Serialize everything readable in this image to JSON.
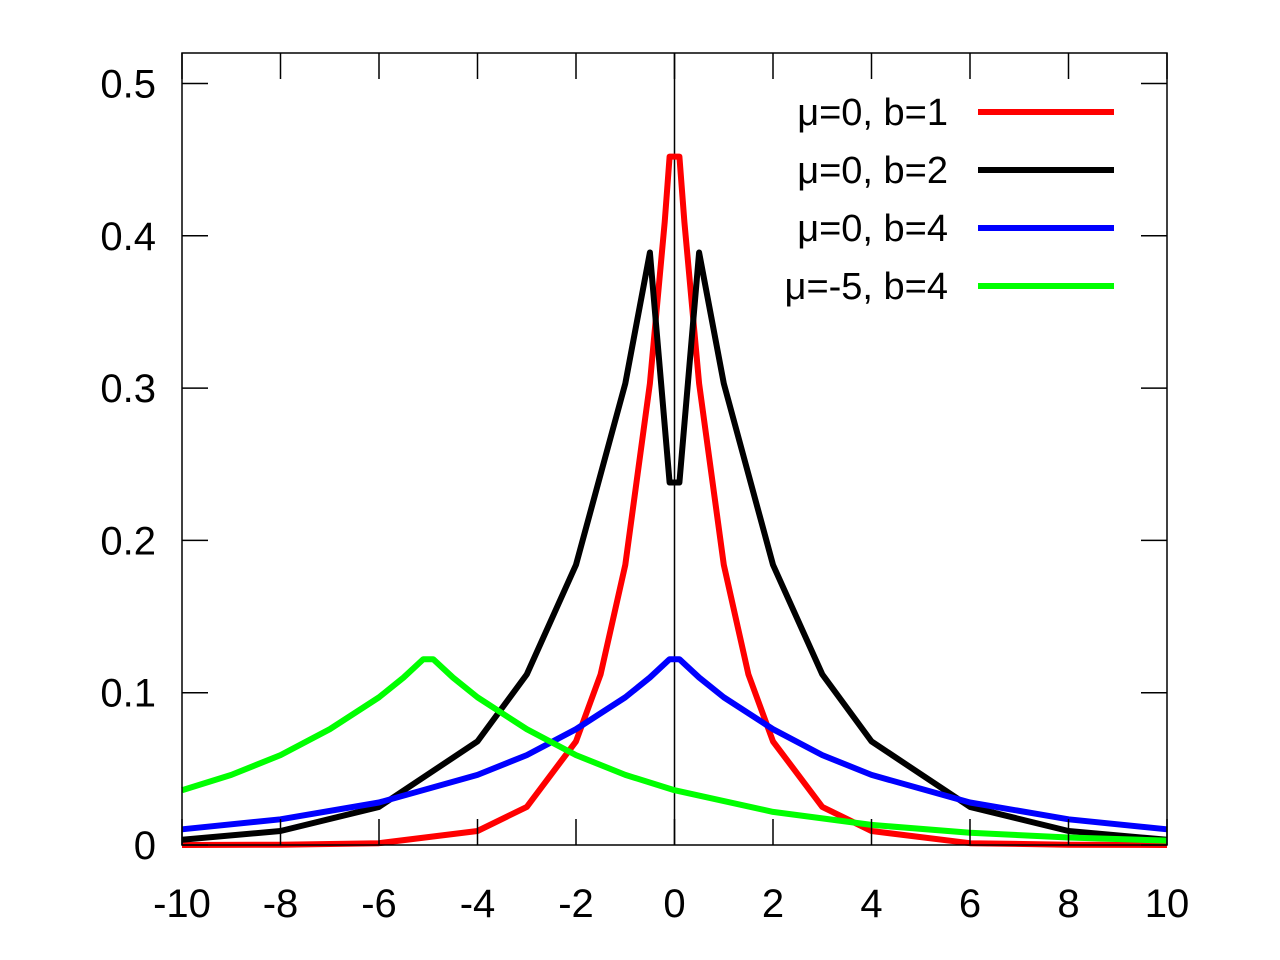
{
  "chart_data": {
    "type": "line",
    "title": "",
    "xlabel": "",
    "ylabel": "",
    "xlim": [
      -10,
      10
    ],
    "ylim": [
      0,
      0.52
    ],
    "xticks": [
      -10,
      -8,
      -6,
      -4,
      -2,
      0,
      2,
      4,
      6,
      8,
      10
    ],
    "yticks": [
      0,
      0.1,
      0.2,
      0.3,
      0.4,
      0.5
    ],
    "xtick_labels": [
      "-10",
      "-8",
      "-6",
      "-4",
      "-2",
      "0",
      "2",
      "4",
      "6",
      "8",
      "10"
    ],
    "ytick_labels": [
      "0",
      "0.1",
      "0.2",
      "0.3",
      "0.4",
      "0.5"
    ],
    "vertical_reference_line_x": 0,
    "grid": false,
    "legend_position": "top-right",
    "series": [
      {
        "name": "μ=0, b=1",
        "color": "#ff0000",
        "x": [
          -10,
          -8,
          -6,
          -4,
          -3,
          -2,
          -1.5,
          -1,
          -0.5,
          -0.2,
          -0.1,
          0.1,
          0.2,
          0.5,
          1,
          1.5,
          2,
          3,
          4,
          6,
          8,
          10
        ],
        "y": [
          0.0,
          0.0002,
          0.0012,
          0.0092,
          0.025,
          0.068,
          0.112,
          0.184,
          0.303,
          0.409,
          0.452,
          0.452,
          0.409,
          0.303,
          0.184,
          0.112,
          0.068,
          0.025,
          0.0092,
          0.0012,
          0.0002,
          0.0
        ]
      },
      {
        "name": "μ=0, b=2",
        "color": "#000000",
        "x": [
          -10,
          -8,
          -6,
          -4,
          -3,
          -2,
          -1,
          -0.5,
          -0.1,
          0.1,
          0.5,
          1,
          2,
          3,
          4,
          6,
          8,
          10
        ],
        "y": [
          0.0034,
          0.0092,
          0.025,
          0.068,
          0.112,
          0.184,
          0.303,
          0.389,
          0.238,
          0.238,
          0.389,
          0.303,
          0.184,
          0.112,
          0.068,
          0.025,
          0.0092,
          0.0034
        ]
      },
      {
        "name": "μ=0, b=4",
        "color": "#0000ff",
        "x": [
          -10,
          -8,
          -6,
          -4,
          -3,
          -2,
          -1,
          -0.5,
          -0.1,
          0.1,
          0.5,
          1,
          2,
          3,
          4,
          6,
          8,
          10
        ],
        "y": [
          0.0103,
          0.0169,
          0.0279,
          0.046,
          0.059,
          0.076,
          0.097,
          0.11,
          0.122,
          0.122,
          0.11,
          0.097,
          0.076,
          0.059,
          0.046,
          0.0279,
          0.0169,
          0.0103
        ]
      },
      {
        "name": "μ=-5, b=4",
        "color": "#00ff00",
        "x": [
          -10,
          -9,
          -8,
          -7,
          -6,
          -5.5,
          -5.1,
          -4.9,
          -4.5,
          -4,
          -3,
          -2,
          -1,
          0,
          2,
          4,
          6,
          8,
          10
        ],
        "y": [
          0.036,
          0.046,
          0.059,
          0.076,
          0.097,
          0.11,
          0.122,
          0.122,
          0.11,
          0.097,
          0.076,
          0.059,
          0.046,
          0.036,
          0.0217,
          0.0132,
          0.008,
          0.0049,
          0.0029
        ]
      }
    ]
  }
}
